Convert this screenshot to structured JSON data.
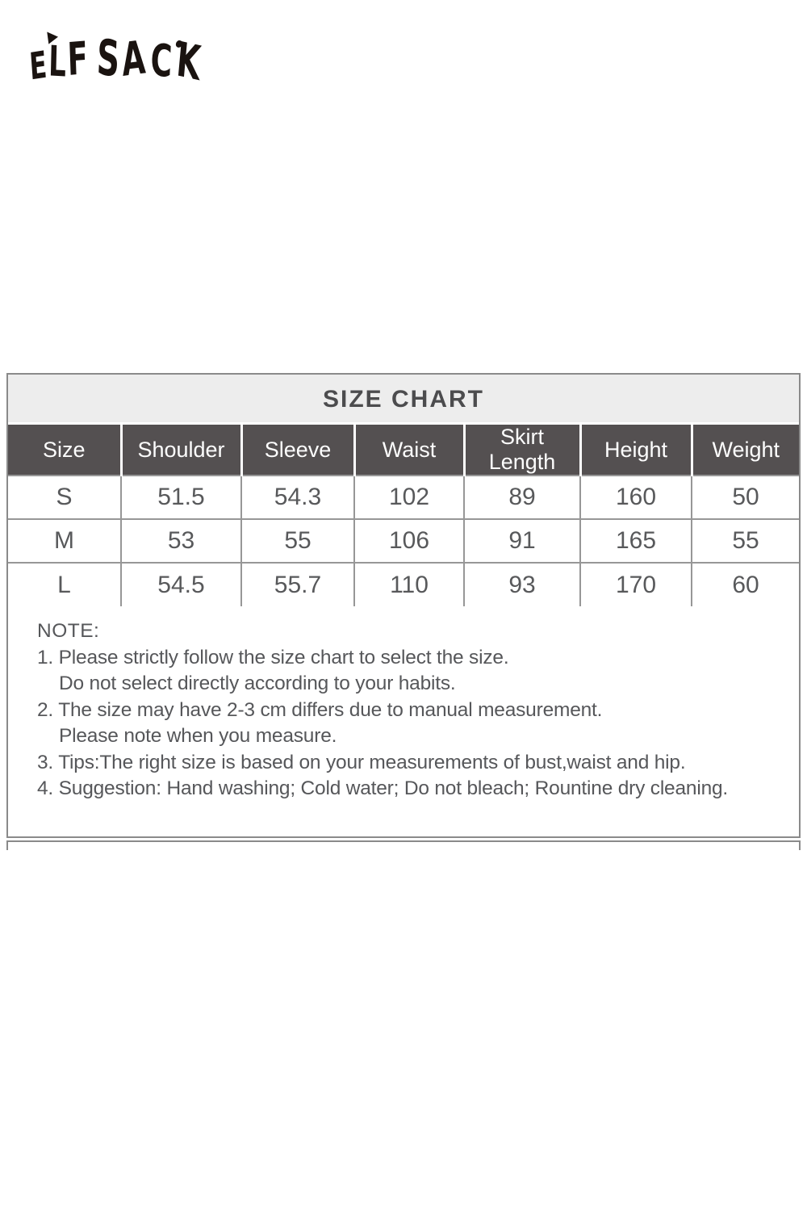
{
  "logo": {
    "text": "ELF SACK"
  },
  "size_chart": {
    "title": "SIZE CHART",
    "columns": [
      "Size",
      "Shoulder",
      "Sleeve",
      "Waist",
      "Skirt Length",
      "Height",
      "Weight"
    ],
    "rows": [
      [
        "S",
        "51.5",
        "54.3",
        "102",
        "89",
        "160",
        "50"
      ],
      [
        "M",
        "53",
        "55",
        "106",
        "91",
        "165",
        "55"
      ],
      [
        "L",
        "54.5",
        "55.7",
        "110",
        "93",
        "170",
        "60"
      ]
    ]
  },
  "notes": {
    "heading": "NOTE:",
    "lines": [
      "1. Please strictly follow the size chart to select the size.",
      "Do not select directly according to your habits.",
      "2. The size may have 2-3 cm differs due to manual measurement.",
      "Please note when you measure.",
      "3. Tips:The right size is based on your measurements of bust,waist and hip.",
      "4. Suggestion: Hand washing; Cold water; Do not bleach; Rountine dry cleaning."
    ]
  },
  "colors": {
    "header_bg": "#545051",
    "header_text": "#fdfdfd",
    "title_bg": "#ededed",
    "title_text": "#4c4c4e",
    "body_text": "#58595b",
    "border": "#8a8a8a",
    "logo": "#1a1310"
  }
}
